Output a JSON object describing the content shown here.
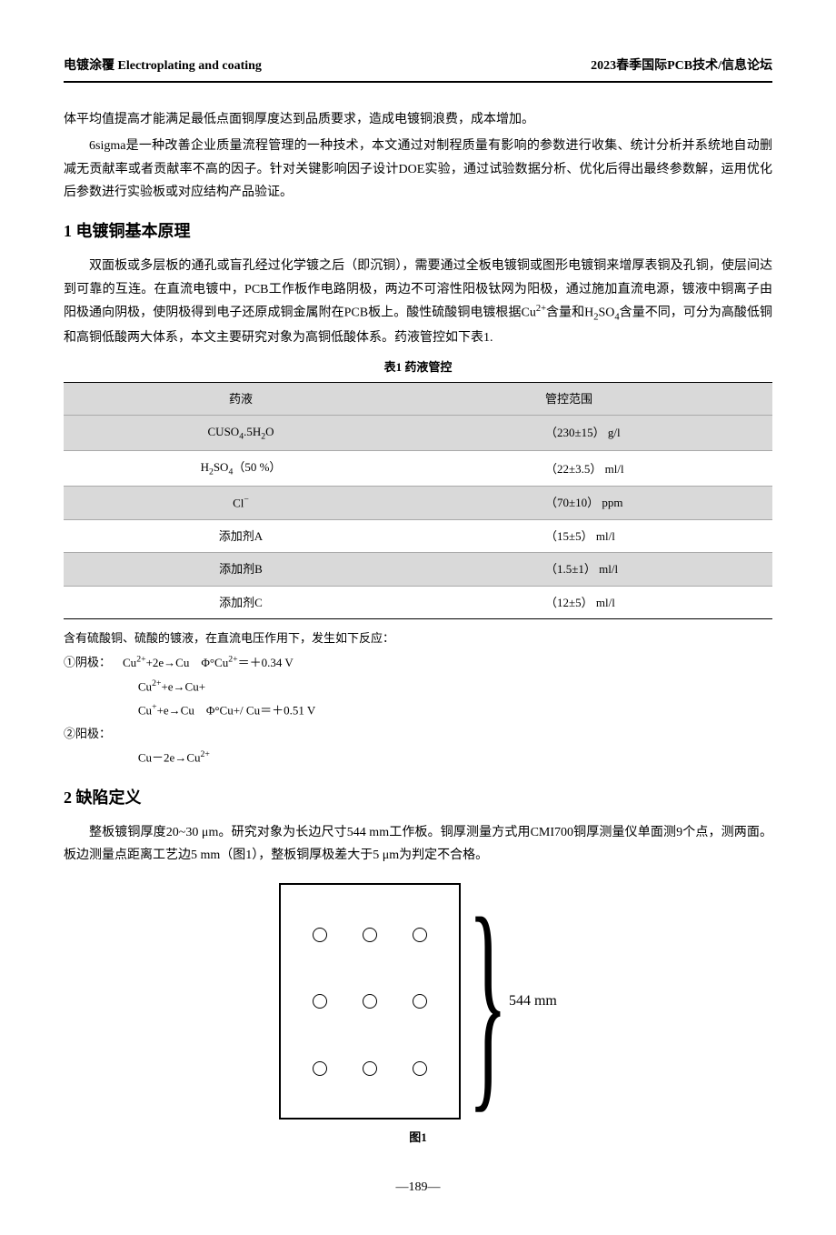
{
  "header": {
    "left": "电镀涂覆  Electroplating and coating",
    "right": "2023春季国际PCB技术/信息论坛"
  },
  "intro_paragraphs": [
    "体平均值提高才能满足最低点面铜厚度达到品质要求，造成电镀铜浪费，成本增加。",
    "6sigma是一种改善企业质量流程管理的一种技术，本文通过对制程质量有影响的参数进行收集、统计分析并系统地自动删减无贡献率或者贡献率不高的因子。针对关键影响因子设计DOE实验，通过试验数据分析、优化后得出最终参数解，运用优化后参数进行实验板或对应结构产品验证。"
  ],
  "section1": {
    "heading": "1  电镀铜基本原理",
    "para_html": "双面板或多层板的通孔或盲孔经过化学镀之后（即沉铜），需要通过全板电镀铜或图形电镀铜来增厚表铜及孔铜，使层间达到可靠的互连。在直流电镀中，PCB工作板作电路阴极，两边不可溶性阳极钛网为阳极，通过施加直流电源，镀液中铜离子由阳极通向阴极，使阴极得到电子还原成铜金属附在PCB板上。酸性硫酸铜电镀根据Cu<sup>2+</sup>含量和H<sub>2</sub>SO<sub>4</sub>含量不同，可分为高酸低铜和高铜低酸两大体系，本文主要研究对象为高铜低酸体系。药液管控如下表1."
  },
  "table1": {
    "caption": "表1  药液管控",
    "headers": [
      "药液",
      "管控范围"
    ],
    "rows": [
      {
        "chem_html": "CUSO<sub>4</sub>.5H<sub>2</sub>O",
        "range": "（230±15） g/l",
        "grey": true
      },
      {
        "chem_html": "H<sub>2</sub>SO<sub>4</sub>（50 %）",
        "range": "（22±3.5） ml/l",
        "grey": false
      },
      {
        "chem_html": "Cl<sup>−</sup>",
        "range": "（70±10） ppm",
        "grey": true
      },
      {
        "chem_html": "添加剂A",
        "range": "（15±5） ml/l",
        "grey": false
      },
      {
        "chem_html": "添加剂B",
        "range": "（1.5±1） ml/l",
        "grey": true
      },
      {
        "chem_html": "添加剂C",
        "range": "（12±5） ml/l",
        "grey": false
      }
    ]
  },
  "reactions": {
    "intro": "含有硫酸铜、硫酸的镀液，在直流电压作用下，发生如下反应：",
    "cathode_label": "①阴极：",
    "cathode_lines_html": [
      "Cu<sup>2+</sup>+2e→Cu　Φ°Cu<sup>2+</sup>＝＋0.34 V",
      "Cu<sup>2+</sup>+e→Cu+",
      "Cu<sup>+</sup>+e→Cu　Φ°Cu+/ Cu＝＋0.51 V"
    ],
    "anode_label": "②阳极：",
    "anode_lines_html": [
      "Cu－2e→Cu<sup>2+</sup>"
    ]
  },
  "section2": {
    "heading": "2  缺陷定义",
    "para": "整板镀铜厚度20~30 μm。研究对象为长边尺寸544 mm工作板。铜厚测量方式用CMI700铜厚测量仪单面测9个点，测两面。板边测量点距离工艺边5 mm（图1），整板铜厚极差大于5 μm为判定不合格。"
  },
  "figure1": {
    "board_dimension_label": "544 mm",
    "hole_count": 9,
    "caption": "图1"
  },
  "page_number": "—189—"
}
